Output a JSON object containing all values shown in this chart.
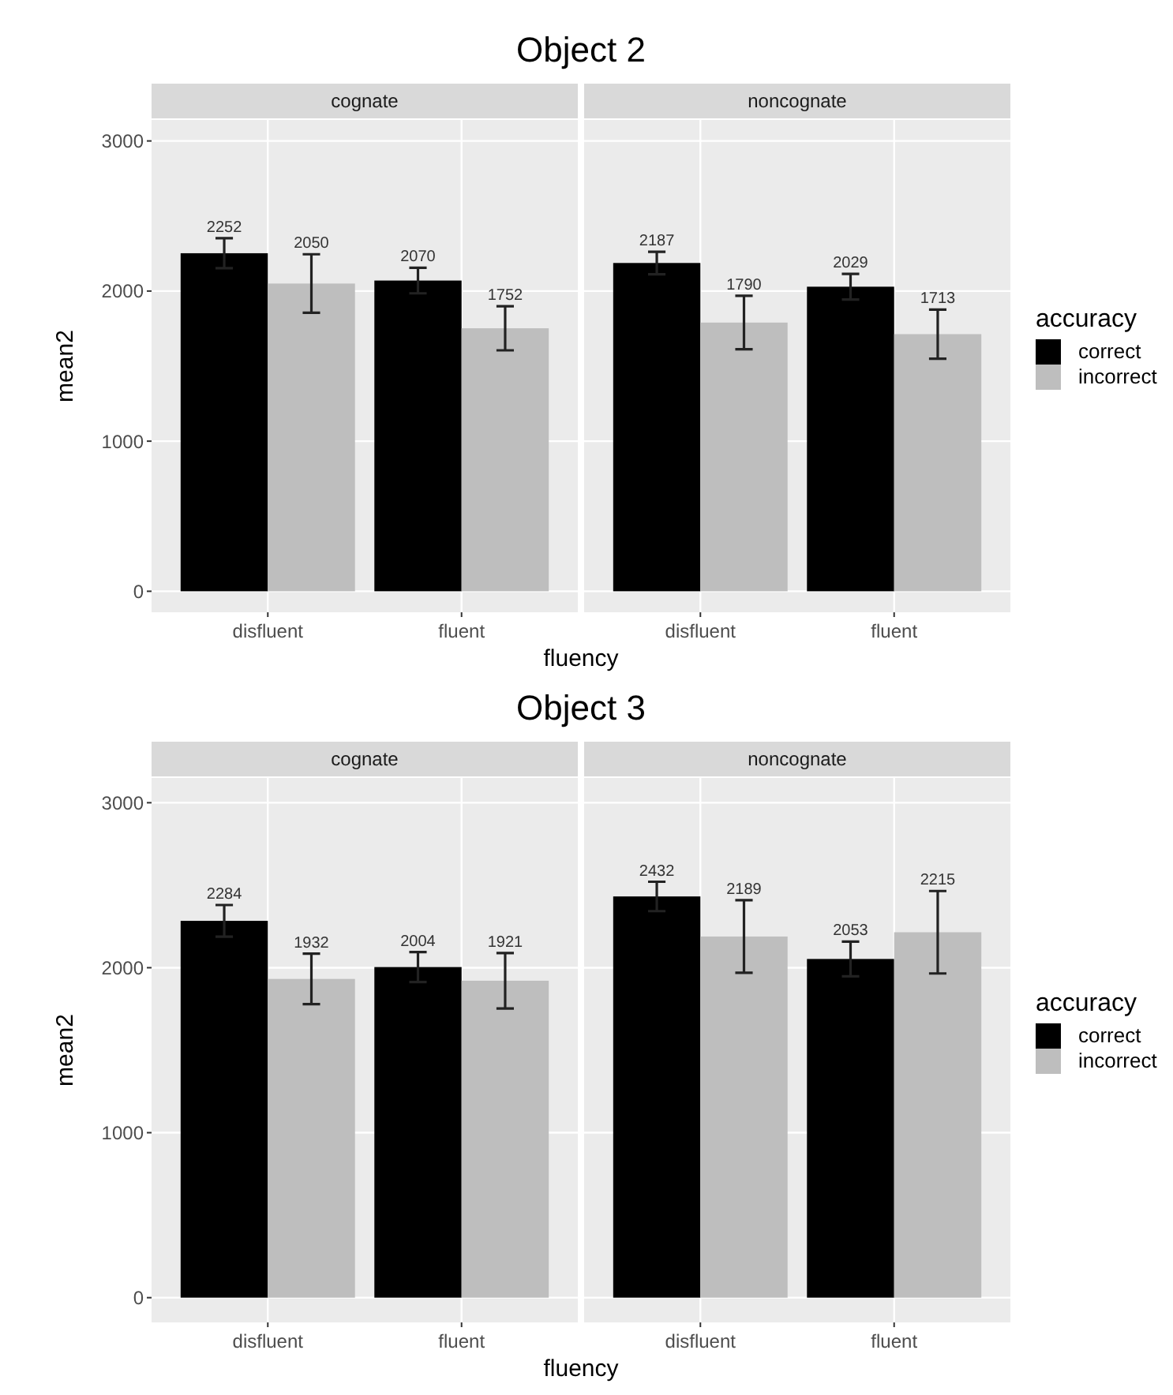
{
  "chart_data": [
    {
      "type": "bar",
      "title": "Object 2",
      "subtitle": "cognate",
      "xlabel": "fluency",
      "ylabel": "mean2",
      "categories": [
        "disfluent",
        "fluent"
      ],
      "series": [
        {
          "color": "#000000",
          "values": [
            2252,
            2070
          ],
          "errors": [
            100,
            85
          ]
        },
        {
          "color": "#bebebe",
          "values": [
            2050,
            1752
          ],
          "errors": [
            195,
            147
          ]
        }
      ],
      "ylim": [
        -140,
        3140
      ],
      "yticks": [
        0,
        1000,
        2000,
        3000
      ],
      "grid": true,
      "data_labels": true,
      "legend": false
    },
    {
      "type": "bar",
      "subtitle": "noncognate",
      "legend_title": "accuracy",
      "categories": [
        "disfluent",
        "fluent"
      ],
      "series": [
        {
          "name": "correct",
          "color": "#000000",
          "values": [
            2187,
            2029
          ],
          "errors": [
            75,
            85
          ]
        },
        {
          "name": "incorrect",
          "color": "#bebebe",
          "values": [
            1790,
            1713
          ],
          "errors": [
            178,
            164
          ]
        }
      ],
      "ylim": [
        -140,
        3140
      ],
      "yticks": [
        0,
        1000,
        2000,
        3000
      ],
      "grid": true,
      "data_labels": true,
      "legend": "right",
      "tick_labels": "x"
    },
    {
      "type": "bar",
      "title": "Object 3",
      "subtitle": "cognate",
      "xlabel": "fluency",
      "ylabel": "mean2",
      "categories": [
        "disfluent",
        "fluent"
      ],
      "series": [
        {
          "color": "#000000",
          "values": [
            2284,
            2004
          ],
          "errors": [
            96,
            91
          ]
        },
        {
          "color": "#bebebe",
          "values": [
            1932,
            1921
          ],
          "errors": [
            153,
            168
          ]
        }
      ],
      "ylim": [
        -150,
        3150
      ],
      "yticks": [
        0,
        1000,
        2000,
        3000
      ],
      "grid": true,
      "data_labels": true,
      "legend": false
    },
    {
      "type": "bar",
      "subtitle": "noncognate",
      "legend_title": "accuracy",
      "categories": [
        "disfluent",
        "fluent"
      ],
      "series": [
        {
          "name": "correct",
          "color": "#000000",
          "values": [
            2432,
            2053
          ],
          "errors": [
            89,
            105
          ]
        },
        {
          "name": "incorrect",
          "color": "#bebebe",
          "values": [
            2189,
            2215
          ],
          "errors": [
            220,
            250
          ]
        }
      ],
      "ylim": [
        -150,
        3150
      ],
      "yticks": [
        0,
        1000,
        2000,
        3000
      ],
      "grid": true,
      "data_labels": true,
      "legend": "right",
      "tick_labels": "x"
    }
  ]
}
